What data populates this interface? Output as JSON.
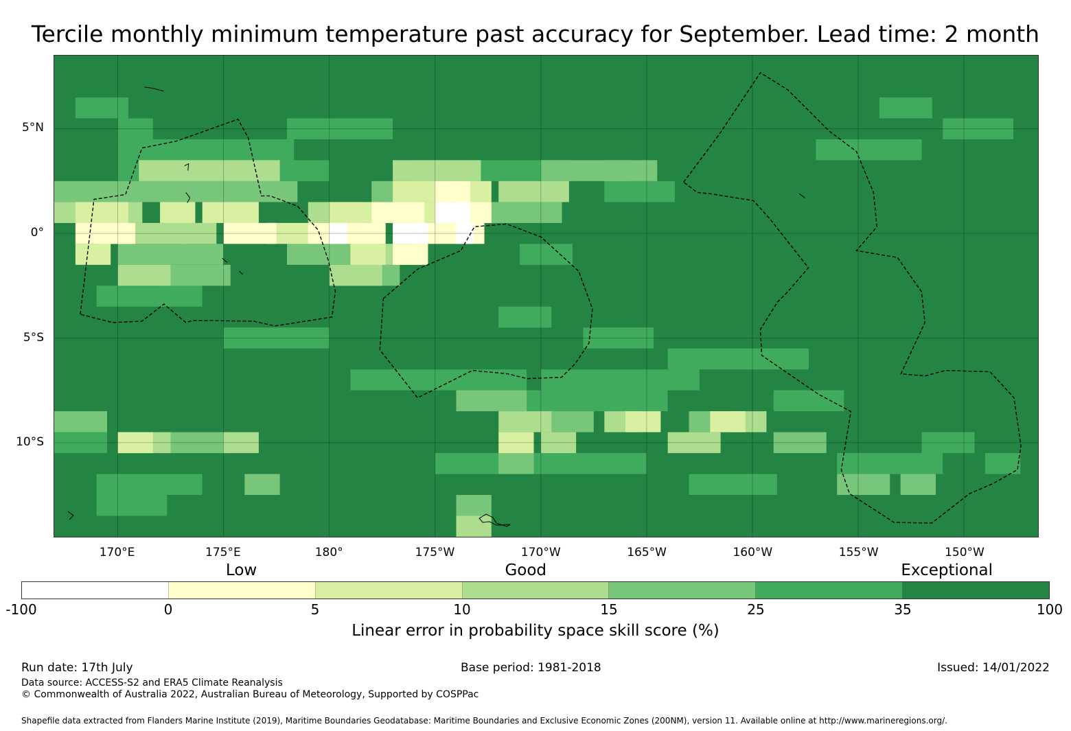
{
  "title": "Tercile monthly minimum temperature past accuracy for September. Lead time: 2 month",
  "map": {
    "lon_min": 167,
    "lon_max": 213.5,
    "lat_min": -14.5,
    "lat_max": 8.5,
    "lat_ticks": [
      {
        "value": 5,
        "label": "5°N"
      },
      {
        "value": 0,
        "label": "0°"
      },
      {
        "value": -5,
        "label": "5°S"
      },
      {
        "value": -10,
        "label": "10°S"
      }
    ],
    "lon_ticks": [
      {
        "value": 170,
        "label": "170°E"
      },
      {
        "value": 175,
        "label": "175°E"
      },
      {
        "value": 180,
        "label": "180°"
      },
      {
        "value": 185,
        "label": "175°W"
      },
      {
        "value": 190,
        "label": "170°W"
      },
      {
        "value": 195,
        "label": "165°W"
      },
      {
        "value": 200,
        "label": "160°W"
      },
      {
        "value": 205,
        "label": "155°W"
      },
      {
        "value": 210,
        "label": "150°W"
      }
    ],
    "base_color": "#238443",
    "skill_zones": [
      {
        "color": "#41ab5d",
        "cells": [
          [
            168,
            6,
            3
          ],
          [
            170,
            5,
            2
          ],
          [
            170,
            4,
            10
          ],
          [
            170,
            3,
            12
          ],
          [
            169,
            -3,
            6
          ],
          [
            175,
            -5,
            6
          ],
          [
            181,
            -7,
            10
          ],
          [
            184,
            3,
            9
          ],
          [
            186,
            -8,
            12
          ],
          [
            190,
            -7,
            9
          ],
          [
            196,
            -6,
            8
          ],
          [
            201,
            -8,
            4
          ],
          [
            203,
            4,
            6
          ],
          [
            206,
            6,
            3
          ],
          [
            209,
            5,
            4
          ],
          [
            185,
            -11,
            12
          ],
          [
            169,
            -12,
            6
          ],
          [
            169,
            -13,
            4
          ],
          [
            167,
            -10,
            3
          ],
          [
            178,
            5,
            6
          ],
          [
            189,
            -1,
            3
          ],
          [
            193,
            2,
            4
          ],
          [
            188,
            -4,
            3
          ],
          [
            192,
            -5,
            4
          ],
          [
            197,
            -12,
            5
          ],
          [
            204,
            -11,
            6
          ],
          [
            208,
            -10,
            3
          ],
          [
            211,
            -11,
            2
          ]
        ]
      },
      {
        "color": "#78c679",
        "cells": [
          [
            171,
            2,
            9
          ],
          [
            167,
            2,
            5
          ],
          [
            170,
            -1,
            6
          ],
          [
            172,
            -2,
            4
          ],
          [
            178,
            -1,
            5
          ],
          [
            182,
            2,
            6
          ],
          [
            186,
            1,
            6
          ],
          [
            190,
            3,
            5
          ],
          [
            193,
            3,
            3
          ],
          [
            180,
            -2,
            4
          ],
          [
            186,
            -8,
            4
          ],
          [
            190,
            -9,
            3
          ],
          [
            197,
            -9,
            3
          ],
          [
            201,
            -10,
            3
          ],
          [
            167,
            -9,
            3
          ],
          [
            172,
            -10,
            4
          ],
          [
            176,
            -12,
            2
          ],
          [
            188,
            -11,
            2
          ],
          [
            186,
            -13,
            2
          ],
          [
            204,
            -12,
            3
          ],
          [
            207,
            -12,
            2
          ]
        ]
      },
      {
        "color": "#addd8e",
        "cells": [
          [
            171,
            3,
            8
          ],
          [
            167,
            1,
            5
          ],
          [
            170,
            0,
            4
          ],
          [
            173,
            0,
            2
          ],
          [
            179,
            1,
            3
          ],
          [
            181,
            -1,
            4
          ],
          [
            183,
            3,
            5
          ],
          [
            188,
            2,
            4
          ],
          [
            170,
            -2,
            3
          ],
          [
            180,
            -2,
            3
          ],
          [
            188,
            -9,
            3
          ],
          [
            190,
            -10,
            2
          ],
          [
            196,
            -10,
            3
          ],
          [
            193,
            -9,
            2
          ],
          [
            170,
            -10,
            3
          ],
          [
            175,
            -10,
            2
          ],
          [
            186,
            -14,
            2
          ],
          [
            199,
            -9,
            2
          ]
        ]
      },
      {
        "color": "#d9f0a3",
        "cells": [
          [
            168,
            1,
            3
          ],
          [
            169,
            0,
            2
          ],
          [
            174,
            1,
            3
          ],
          [
            177,
            0,
            3
          ],
          [
            180,
            1,
            3
          ],
          [
            184,
            1,
            4
          ],
          [
            183,
            2,
            3
          ],
          [
            186,
            2,
            2
          ],
          [
            181,
            -1,
            2
          ],
          [
            168,
            -1,
            2
          ],
          [
            172,
            1,
            2
          ],
          [
            188,
            -10,
            2
          ],
          [
            194,
            -9,
            2
          ],
          [
            198,
            -9,
            2
          ],
          [
            170,
            -10,
            2
          ],
          [
            175,
            1,
            2
          ]
        ]
      },
      {
        "color": "#ffffcc",
        "cells": [
          [
            168,
            0,
            3
          ],
          [
            170,
            0,
            1
          ],
          [
            175,
            0,
            3
          ],
          [
            179,
            0,
            3
          ],
          [
            182,
            1,
            3
          ],
          [
            184,
            0,
            4
          ],
          [
            181,
            0,
            2
          ],
          [
            185,
            2,
            2
          ],
          [
            186,
            1,
            2
          ],
          [
            183,
            -1,
            2
          ]
        ]
      },
      {
        "color": "#ffffff",
        "cells": [
          [
            185,
            1,
            2
          ],
          [
            183,
            0,
            2
          ],
          [
            186,
            0,
            1
          ],
          [
            180,
            0,
            1
          ]
        ]
      }
    ]
  },
  "categories": [
    {
      "label": "Low",
      "pos": 0.214
    },
    {
      "label": "Good",
      "pos": 0.4905
    },
    {
      "label": "Exceptional",
      "pos": 0.9
    }
  ],
  "colorbar": {
    "colors": [
      "#ffffff",
      "#ffffcc",
      "#d9f0a3",
      "#addd8e",
      "#78c679",
      "#41ab5d",
      "#238443"
    ],
    "ticks": [
      "-100",
      "0",
      "5",
      "10",
      "15",
      "25",
      "35",
      "100"
    ],
    "label": "Linear error in probability space skill score (%)"
  },
  "footer": {
    "run_date": "Run date: 17th July",
    "base_period": "Base period: 1981-2018",
    "issued": "Issued: 14/01/2022",
    "data_source": "Data source: ACCESS-S2 and ERA5 Climate Reanalysis",
    "copyright": "© Commonwealth of Australia 2022, Australian Bureau of Meteorology, Supported by COSPPac",
    "shapefile": "Shapefile data extracted from Flanders Marine Institute (2019), Maritime Boundaries Geodatabase: Maritime Boundaries and Exclusive Economic Zones (200NM), version 11. Available online at http://www.marineregions.org/."
  }
}
